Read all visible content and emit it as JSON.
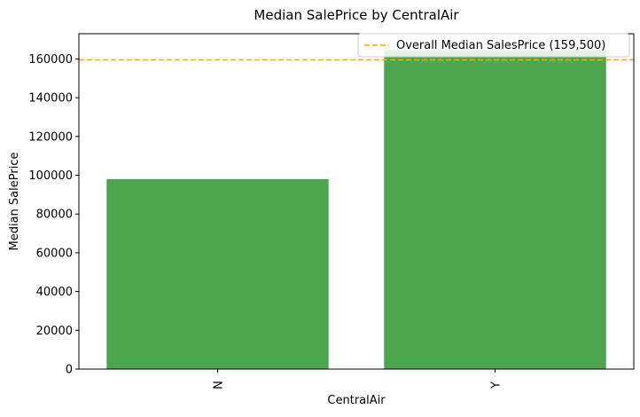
{
  "chart_data": {
    "type": "bar",
    "title": "Median SalePrice by CentralAir",
    "xlabel": "CentralAir",
    "ylabel": "Median SalePrice",
    "categories": [
      "N",
      "Y"
    ],
    "values": [
      98000,
      164500
    ],
    "ylim": [
      0,
      173000
    ],
    "yticks": [
      0,
      20000,
      40000,
      60000,
      80000,
      100000,
      120000,
      140000,
      160000
    ],
    "grid": false,
    "bar_color": "#4da64d",
    "reference_line": {
      "value": 159500,
      "label": "Overall Median SalesPrice (159,500)",
      "color": "#ffa500",
      "style": "dashed"
    },
    "legend": {
      "placement": "top-right"
    }
  }
}
